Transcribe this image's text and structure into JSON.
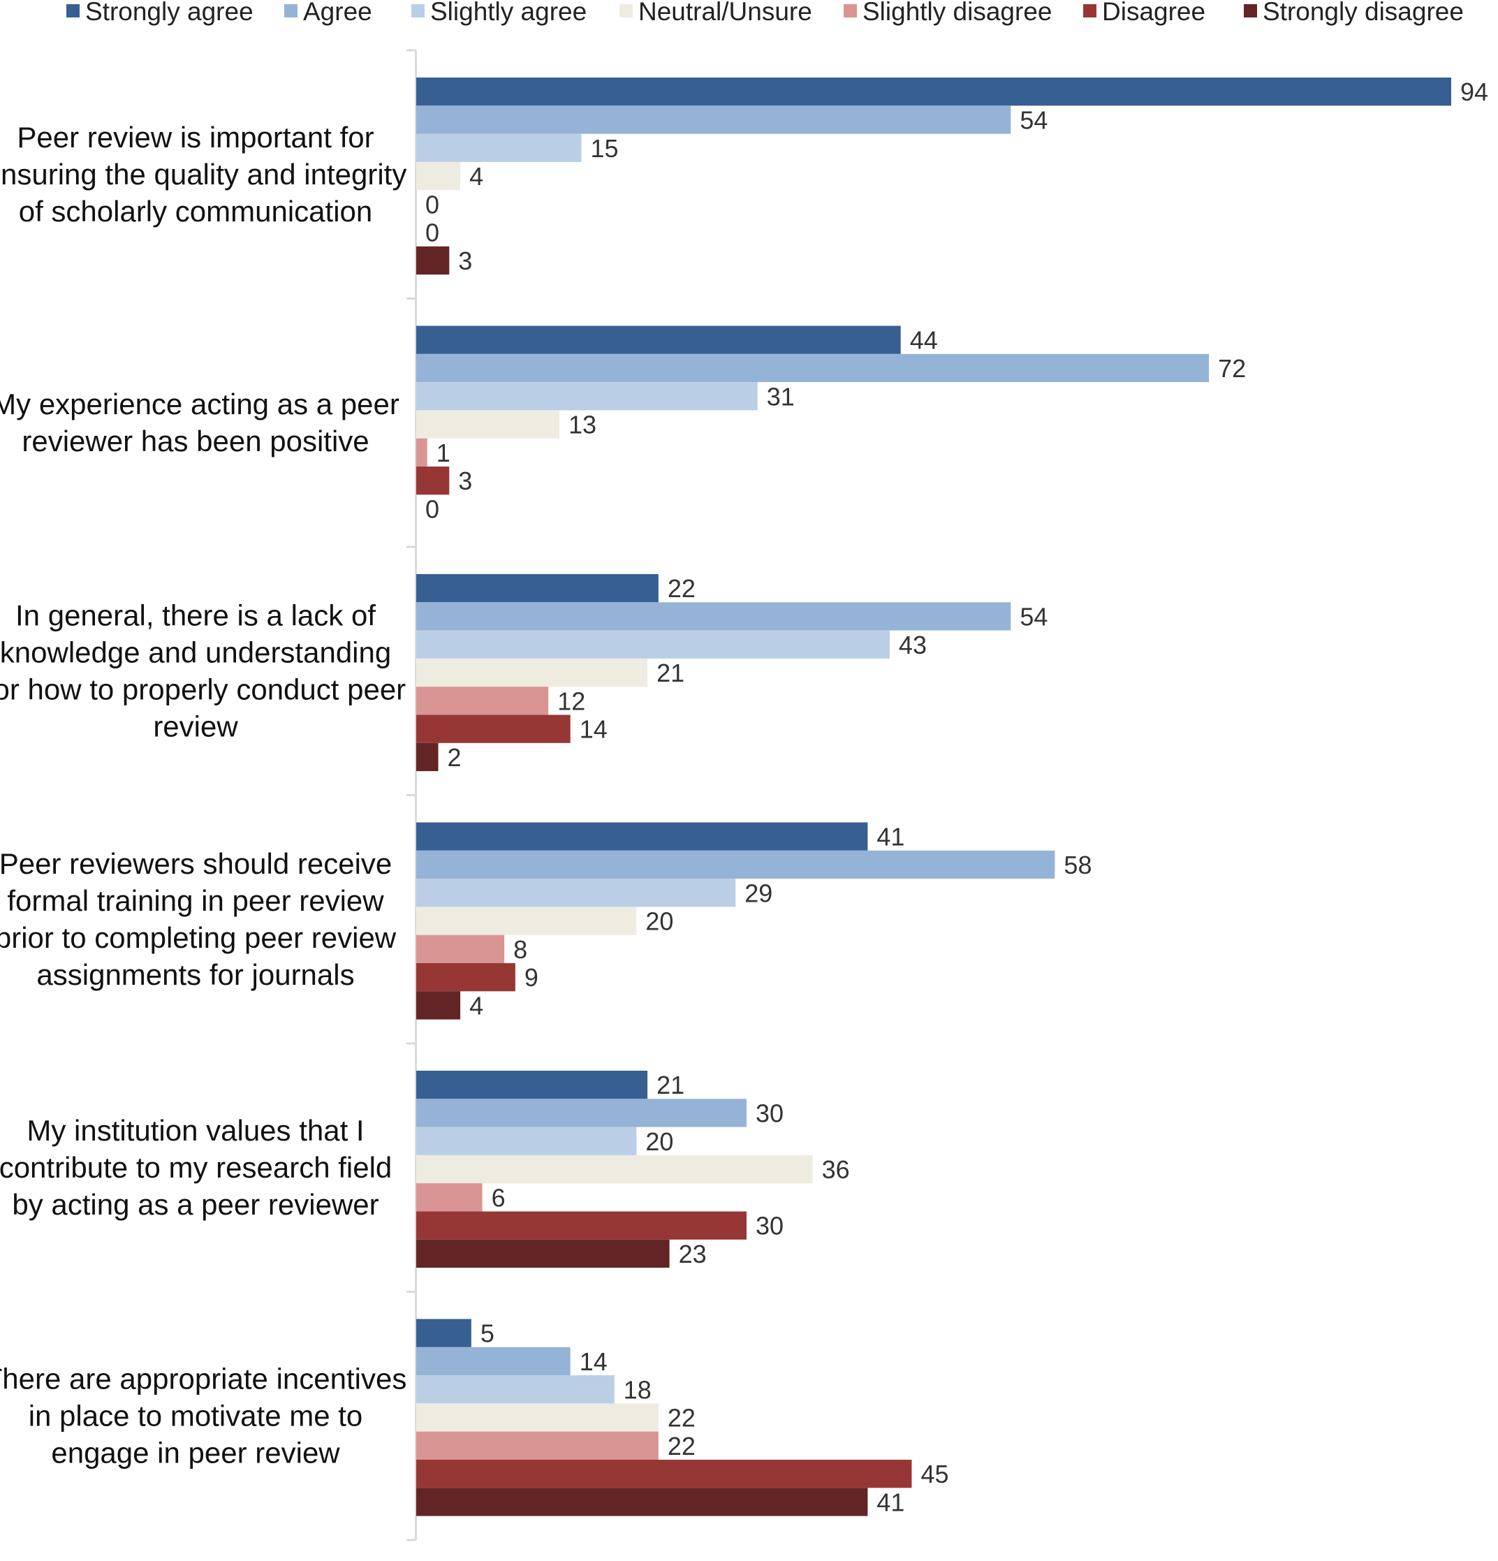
{
  "chart_data": {
    "type": "bar",
    "orientation": "horizontal",
    "legend_position": "top",
    "grid": false,
    "xlim": [
      0,
      94
    ],
    "categories": [
      [
        "Peer review is important for",
        "ensuring the quality and integrity",
        "of scholarly communication"
      ],
      [
        "My experience acting as a peer",
        "reviewer has been positive"
      ],
      [
        "In general, there is a lack of",
        "knowledge and understanding",
        "for how to properly conduct peer",
        "review"
      ],
      [
        "Peer reviewers should receive",
        "formal training in peer review",
        "prior to completing peer review",
        "assignments for journals"
      ],
      [
        "My institution values that I",
        "contribute to my research field",
        "by acting as a peer reviewer"
      ],
      [
        "There are appropriate incentives",
        "in place to motivate me to",
        "engage in peer review"
      ]
    ],
    "series": [
      {
        "name": "Strongly agree",
        "color": "#375f91",
        "values": [
          94,
          44,
          22,
          41,
          21,
          5
        ]
      },
      {
        "name": "Agree",
        "color": "#95b3d7",
        "values": [
          54,
          72,
          54,
          58,
          30,
          14
        ]
      },
      {
        "name": "Slightly agree",
        "color": "#bacee6",
        "values": [
          15,
          31,
          43,
          29,
          20,
          18
        ]
      },
      {
        "name": "Neutral/Unsure",
        "color": "#eeece1",
        "values": [
          4,
          13,
          21,
          20,
          36,
          22
        ]
      },
      {
        "name": "Slightly disagree",
        "color": "#d99593",
        "values": [
          0,
          1,
          12,
          8,
          6,
          22
        ]
      },
      {
        "name": "Disagree",
        "color": "#973735",
        "values": [
          0,
          3,
          14,
          9,
          30,
          45
        ]
      },
      {
        "name": "Strongly disagree",
        "color": "#622425",
        "values": [
          3,
          0,
          2,
          4,
          23,
          41
        ]
      }
    ]
  }
}
